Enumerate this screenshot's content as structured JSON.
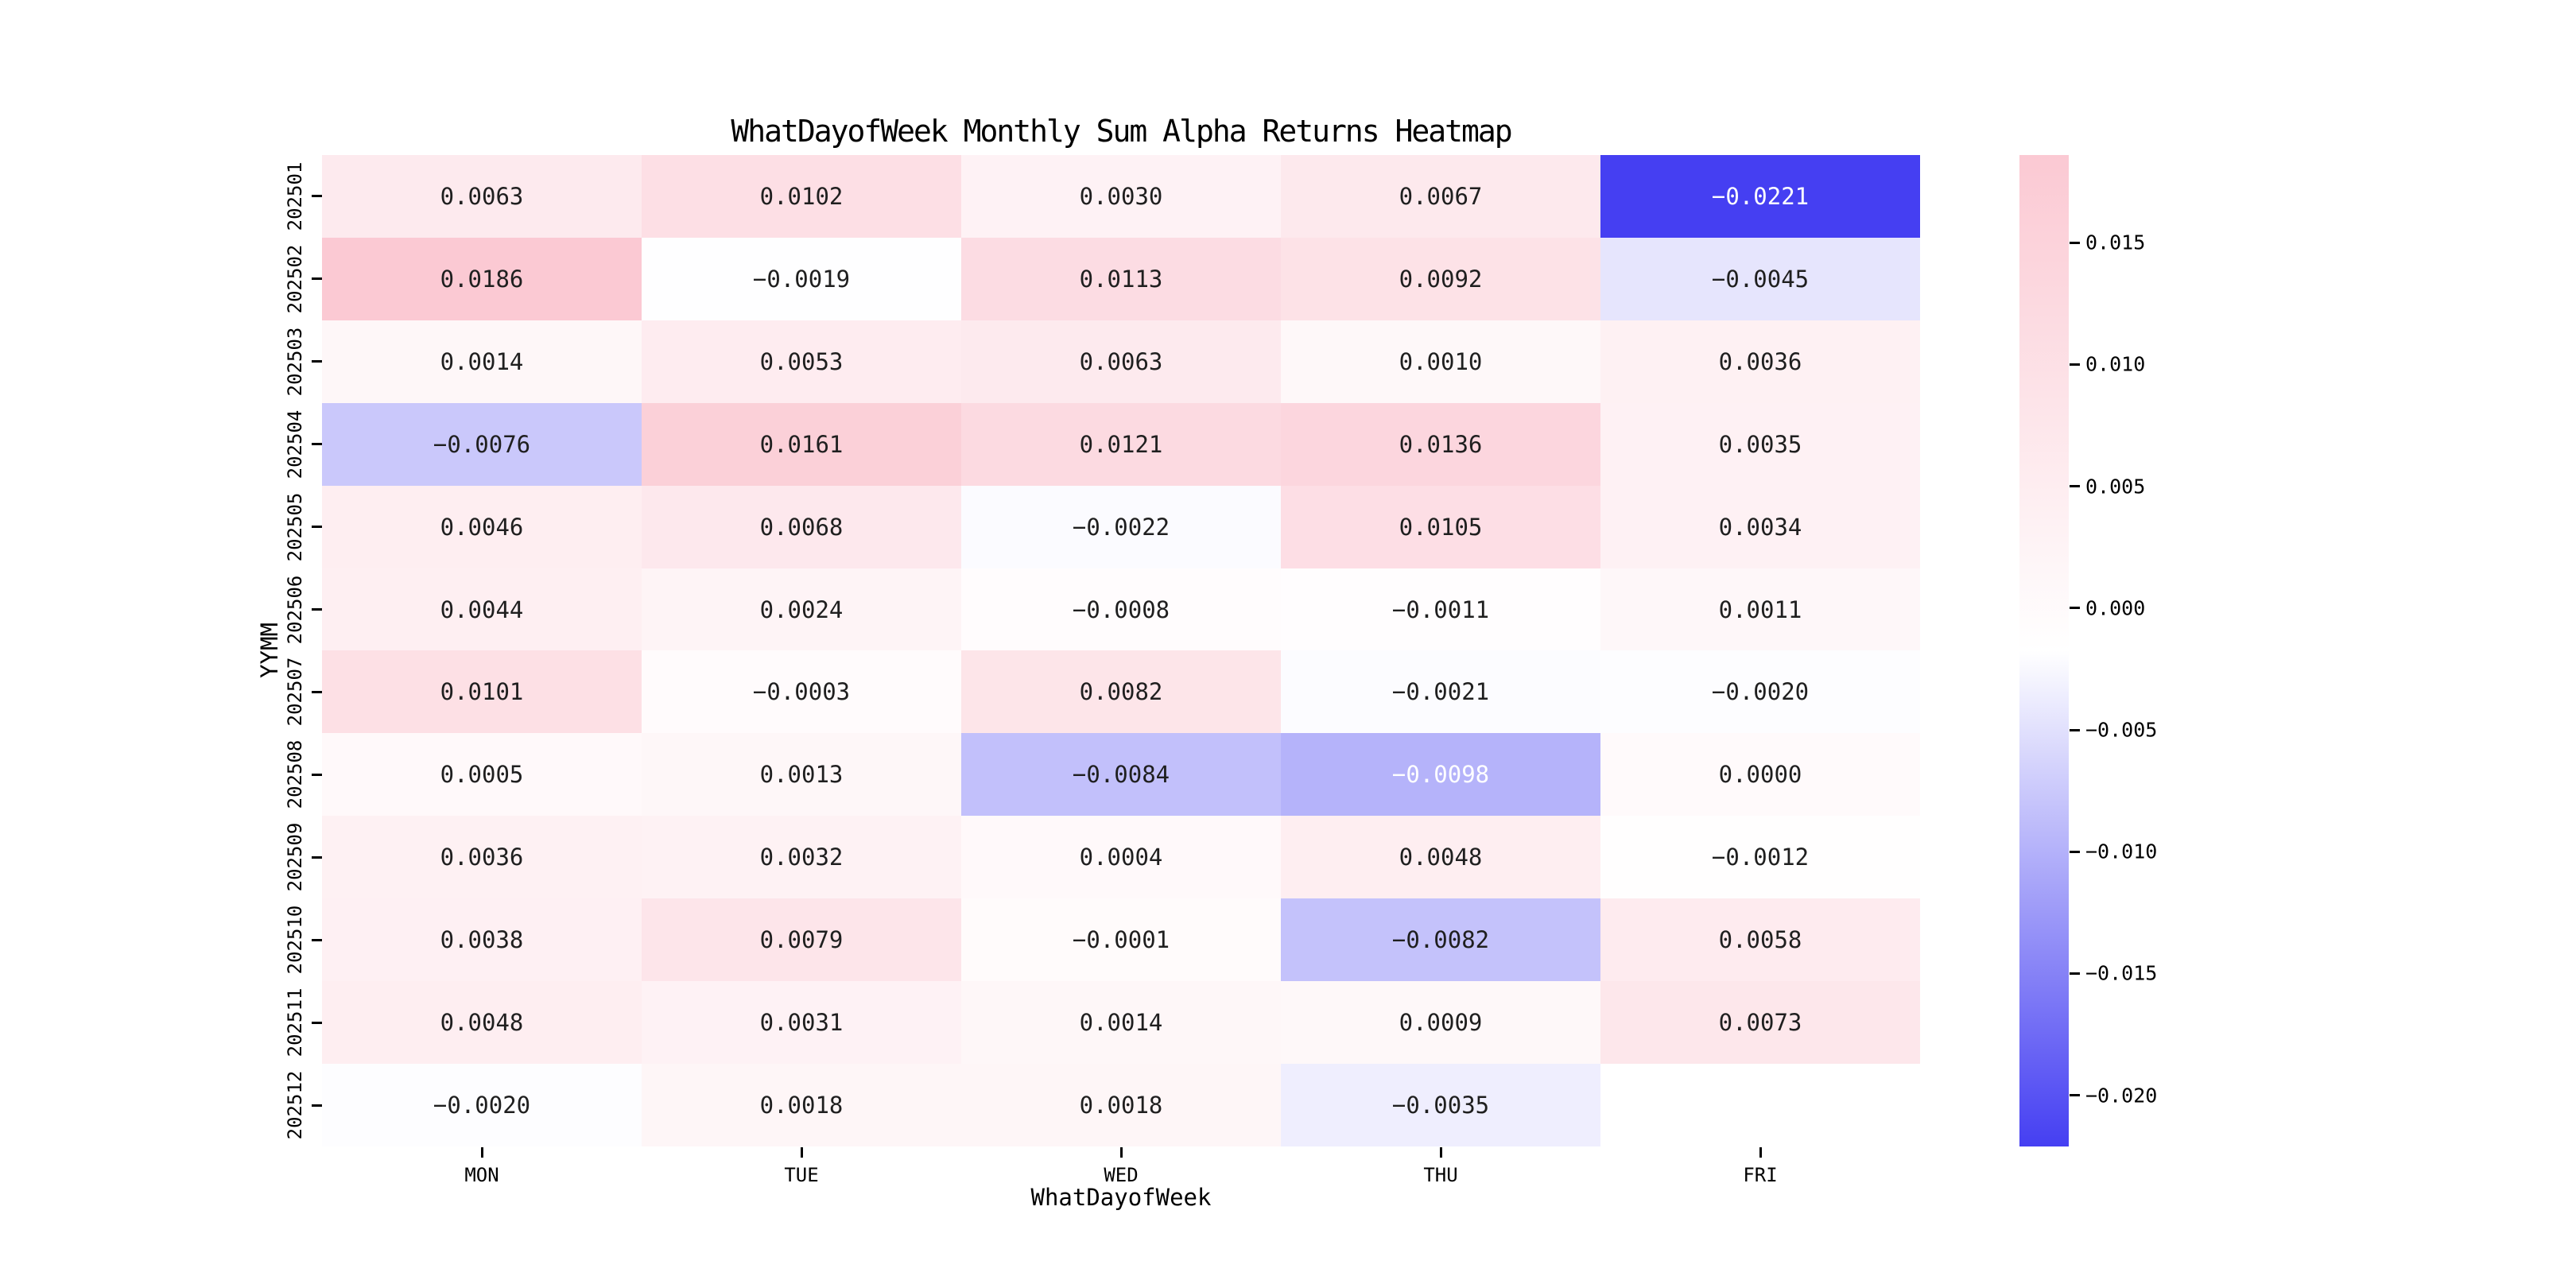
{
  "chart_data": {
    "type": "heatmap",
    "title": "WhatDayofWeek Monthly Sum Alpha Returns Heatmap",
    "xlabel": "WhatDayofWeek",
    "ylabel": "YYMM",
    "columns": [
      "MON",
      "TUE",
      "WED",
      "THU",
      "FRI"
    ],
    "rows": [
      "202501",
      "202502",
      "202503",
      "202504",
      "202505",
      "202506",
      "202507",
      "202508",
      "202509",
      "202510",
      "202511",
      "202512"
    ],
    "values": [
      [
        0.0063,
        0.0102,
        0.003,
        0.0067,
        -0.0221
      ],
      [
        0.0186,
        -0.0019,
        0.0113,
        0.0092,
        -0.0045
      ],
      [
        0.0014,
        0.0053,
        0.0063,
        0.001,
        0.0036
      ],
      [
        -0.0076,
        0.0161,
        0.0121,
        0.0136,
        0.0035
      ],
      [
        0.0046,
        0.0068,
        -0.0022,
        0.0105,
        0.0034
      ],
      [
        0.0044,
        0.0024,
        -0.0008,
        -0.0011,
        0.0011
      ],
      [
        0.0101,
        -0.0003,
        0.0082,
        -0.0021,
        -0.002
      ],
      [
        0.0005,
        0.0013,
        -0.0084,
        -0.0098,
        0.0
      ],
      [
        0.0036,
        0.0032,
        0.0004,
        0.0048,
        -0.0012
      ],
      [
        0.0038,
        0.0079,
        -0.0001,
        -0.0082,
        0.0058
      ],
      [
        0.0048,
        0.0031,
        0.0014,
        0.0009,
        0.0073
      ],
      [
        -0.002,
        0.0018,
        0.0018,
        -0.0035,
        null
      ]
    ],
    "value_decimals": 4,
    "colorbar": {
      "vmin": -0.0221,
      "vmax": 0.0186,
      "ticks": [
        0.015,
        0.01,
        0.005,
        0.0,
        -0.005,
        -0.01,
        -0.015,
        -0.02
      ],
      "tick_labels": [
        "0.015",
        "0.010",
        "0.005",
        "0.000",
        "−0.005",
        "−0.010",
        "−0.015",
        "−0.020"
      ]
    },
    "colors": {
      "negative_end": "#453FF2",
      "midpoint": "#FFFFFF",
      "positive_end": "#FBC9D3",
      "dark_text": "#1F1F1F",
      "light_text": "#FFFFFF"
    },
    "layout": {
      "grid": "off",
      "legend": "colorbar-right",
      "missing_cells": [
        [
          "202512",
          "FRI"
        ]
      ]
    }
  }
}
